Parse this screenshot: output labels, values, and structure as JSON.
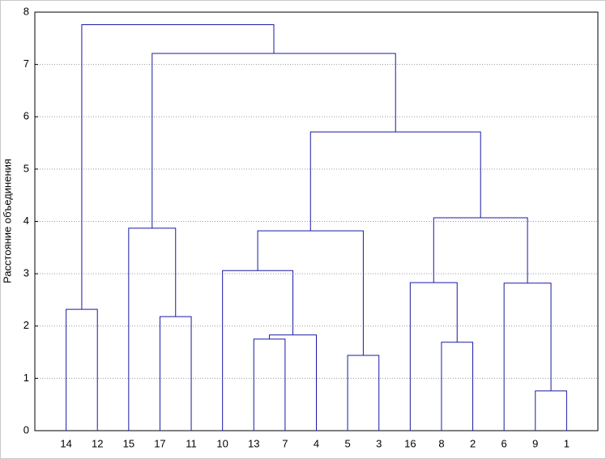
{
  "chart_data": {
    "type": "dendrogram",
    "y_label": "Расстояние объединения",
    "leaves": [
      "14",
      "12",
      "15",
      "17",
      "11",
      "10",
      "13",
      "7",
      "4",
      "5",
      "3",
      "16",
      "8",
      "2",
      "6",
      "9",
      "1"
    ],
    "merges": [
      {
        "children": [
          15,
          16
        ],
        "height": 0.76
      },
      {
        "children": [
          9,
          10
        ],
        "height": 1.44
      },
      {
        "children": [
          12,
          13
        ],
        "height": 1.69
      },
      {
        "children": [
          6,
          7
        ],
        "height": 1.75
      },
      {
        "children": [
          20,
          8
        ],
        "height": 1.83
      },
      {
        "children": [
          3,
          4
        ],
        "height": 2.18
      },
      {
        "children": [
          0,
          1
        ],
        "height": 2.32
      },
      {
        "children": [
          14,
          17
        ],
        "height": 2.82
      },
      {
        "children": [
          11,
          19
        ],
        "height": 2.83
      },
      {
        "children": [
          5,
          21
        ],
        "height": 3.06
      },
      {
        "children": [
          26,
          18
        ],
        "height": 3.82
      },
      {
        "children": [
          2,
          22
        ],
        "height": 3.87
      },
      {
        "children": [
          25,
          24
        ],
        "height": 4.07
      },
      {
        "children": [
          27,
          29
        ],
        "height": 5.71
      },
      {
        "children": [
          28,
          30
        ],
        "height": 7.21
      },
      {
        "children": [
          23,
          31
        ],
        "height": 7.76
      }
    ],
    "color": "#1a1aa6",
    "ylim": [
      0,
      8
    ],
    "yticks": [
      0,
      1,
      2,
      3,
      4,
      5,
      6,
      7,
      8
    ],
    "grid": true
  }
}
